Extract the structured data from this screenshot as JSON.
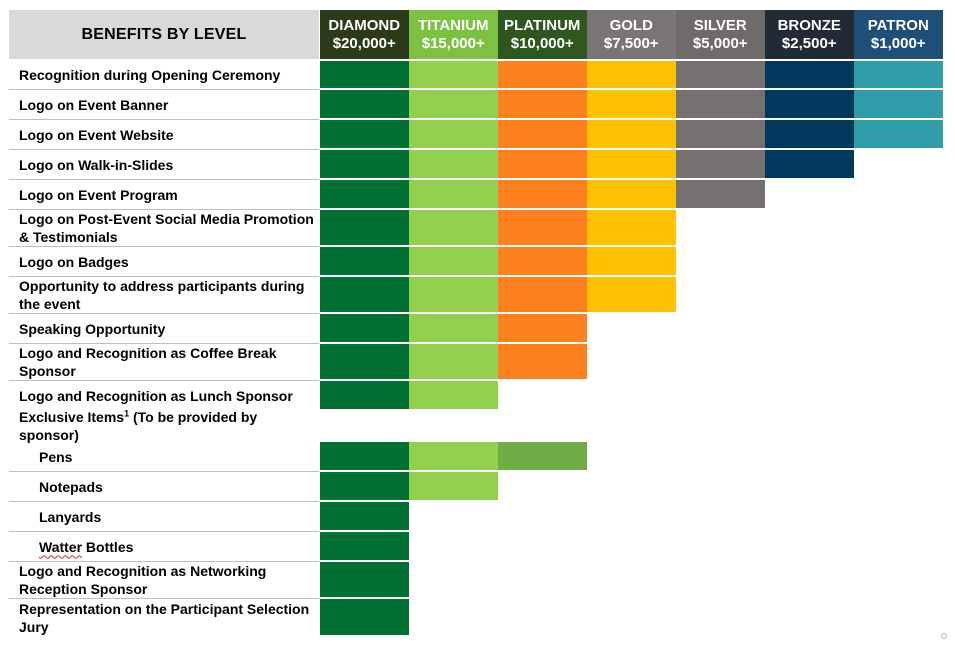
{
  "title": "BENEFITS BY LEVEL",
  "levels": [
    {
      "name": "DIAMOND",
      "amount": "$20,000+",
      "header_color": "#2b3b1a",
      "fill_color": "#027032"
    },
    {
      "name": "TITANIUM",
      "amount": "$15,000+",
      "header_color": "#7cc142",
      "fill_color": "#92d050"
    },
    {
      "name": "PLATINUM",
      "amount": "$10,000+",
      "header_color": "#2f5620",
      "fill_color": "#fd821f"
    },
    {
      "name": "GOLD",
      "amount": "$7,500+",
      "header_color": "#7a7575",
      "fill_color": "#fec000"
    },
    {
      "name": "SILVER",
      "amount": "$5,000+",
      "header_color": "#6f6b6b",
      "fill_color": "#757070"
    },
    {
      "name": "BRONZE",
      "amount": "$2,500+",
      "header_color": "#222a35",
      "fill_color": "#01385e"
    },
    {
      "name": "PATRON",
      "amount": "$1,000+",
      "header_color": "#1f4e79",
      "fill_color": "#2f9ca9"
    }
  ],
  "benefits": [
    {
      "label": "Recognition during Opening Ceremony",
      "levels_included": 7
    },
    {
      "label": "Logo on Event Banner",
      "levels_included": 7
    },
    {
      "label": "Logo on Event Website",
      "levels_included": 7
    },
    {
      "label": "Logo on Walk-in-Slides",
      "levels_included": 6
    },
    {
      "label": "Logo on Event Program",
      "levels_included": 5
    },
    {
      "label": "Logo on Post-Event Social Media Promotion & Testimonials",
      "levels_included": 4
    },
    {
      "label": "Logo on Badges",
      "levels_included": 4
    },
    {
      "label": "Opportunity to address participants during the event",
      "levels_included": 4
    },
    {
      "label": "Speaking Opportunity",
      "levels_included": 3
    },
    {
      "label": "Logo and Recognition as Coffee Break Sponsor",
      "levels_included": 3
    },
    {
      "label": "Logo and Recognition as Lunch Sponsor",
      "levels_included": 2
    },
    {
      "label": "Exclusive Items",
      "footnote": "1",
      "label_suffix": " (To be provided by sponsor)",
      "levels_included": 0,
      "heading": true
    },
    {
      "label": "Pens",
      "levels_included": 3,
      "sub": true,
      "third_color": "#70ad47"
    },
    {
      "label": "Notepads",
      "levels_included": 2,
      "sub": true
    },
    {
      "label": "Lanyards",
      "levels_included": 1,
      "sub": true
    },
    {
      "label": "Watter Bottles",
      "levels_included": 1,
      "sub": true,
      "spell_flag": "Watter"
    },
    {
      "label": "Logo and Recognition as Networking Reception Sponsor",
      "levels_included": 1
    },
    {
      "label": "Representation on the Participant Selection Jury",
      "levels_included": 1
    }
  ]
}
